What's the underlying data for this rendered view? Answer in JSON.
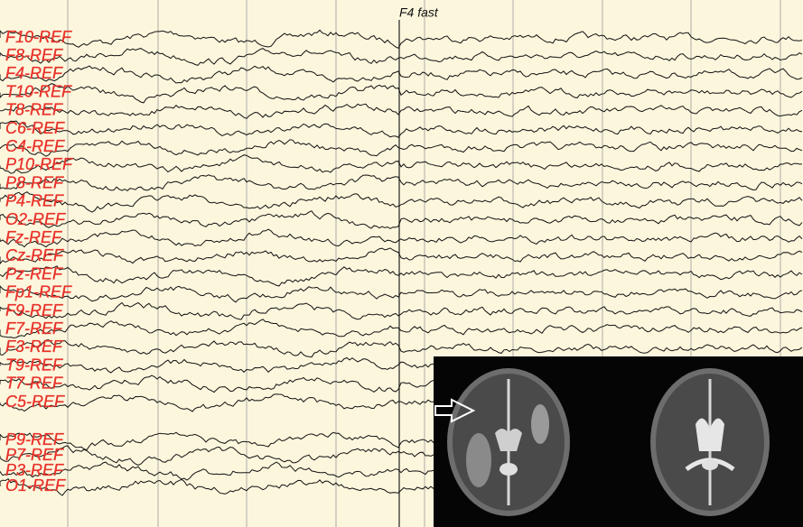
{
  "annotation": "F4 fast",
  "channels": [
    "F10-REF",
    "F8-REF",
    "F4-REF",
    "T10-REF",
    "T8-REF",
    "C6-REF",
    "C4-REF",
    "P10-REF",
    "P8-REF",
    "P4-REF",
    "O2-REF",
    "Fz-REF",
    "Cz-REF",
    "Pz-REF",
    "Fp1-REF",
    "F9-REF",
    "F7-REF",
    "F3-REF",
    "T9-REF",
    "T7-REF",
    "C5-REF"
  ],
  "channels_lower": [
    "P9-REF",
    "P7-REF",
    "P3-REF",
    "O1-REF"
  ]
}
